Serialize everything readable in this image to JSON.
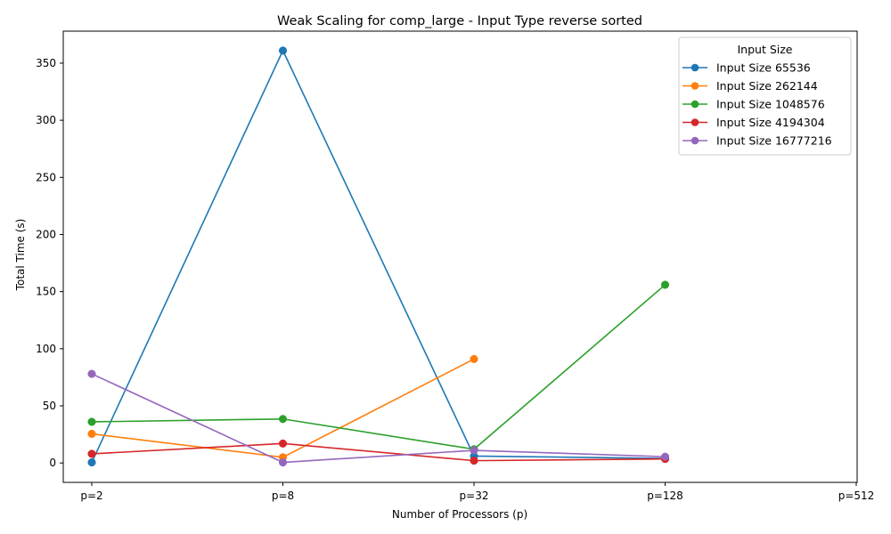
{
  "chart_data": {
    "type": "line",
    "title": "Weak Scaling for comp_large - Input Type reverse sorted",
    "xlabel": "Number of Processors (p)",
    "ylabel": "Total Time (s)",
    "categories": [
      "p=2",
      "p=8",
      "p=32",
      "p=128",
      "p=512"
    ],
    "ylim": [
      -17,
      378
    ],
    "yticks": [
      0,
      50,
      100,
      150,
      200,
      250,
      300,
      350
    ],
    "grid": false,
    "legend": {
      "title": "Input Size",
      "placement": "top-right"
    },
    "series": [
      {
        "name": "Input Size 65536",
        "color": "#1f77b4",
        "values": [
          0.5,
          361,
          6,
          4,
          null
        ]
      },
      {
        "name": "Input Size 262144",
        "color": "#ff7f0e",
        "values": [
          25.5,
          5,
          91,
          null,
          null
        ]
      },
      {
        "name": "Input Size 1048576",
        "color": "#2ca02c",
        "values": [
          36,
          38.5,
          12,
          156,
          null
        ]
      },
      {
        "name": "Input Size 4194304",
        "color": "#d62728",
        "values": [
          8,
          17,
          2,
          3.5,
          null
        ]
      },
      {
        "name": "Input Size 16777216",
        "color": "#9467bd",
        "values": [
          78,
          0.5,
          11,
          5.5,
          null
        ]
      }
    ]
  }
}
